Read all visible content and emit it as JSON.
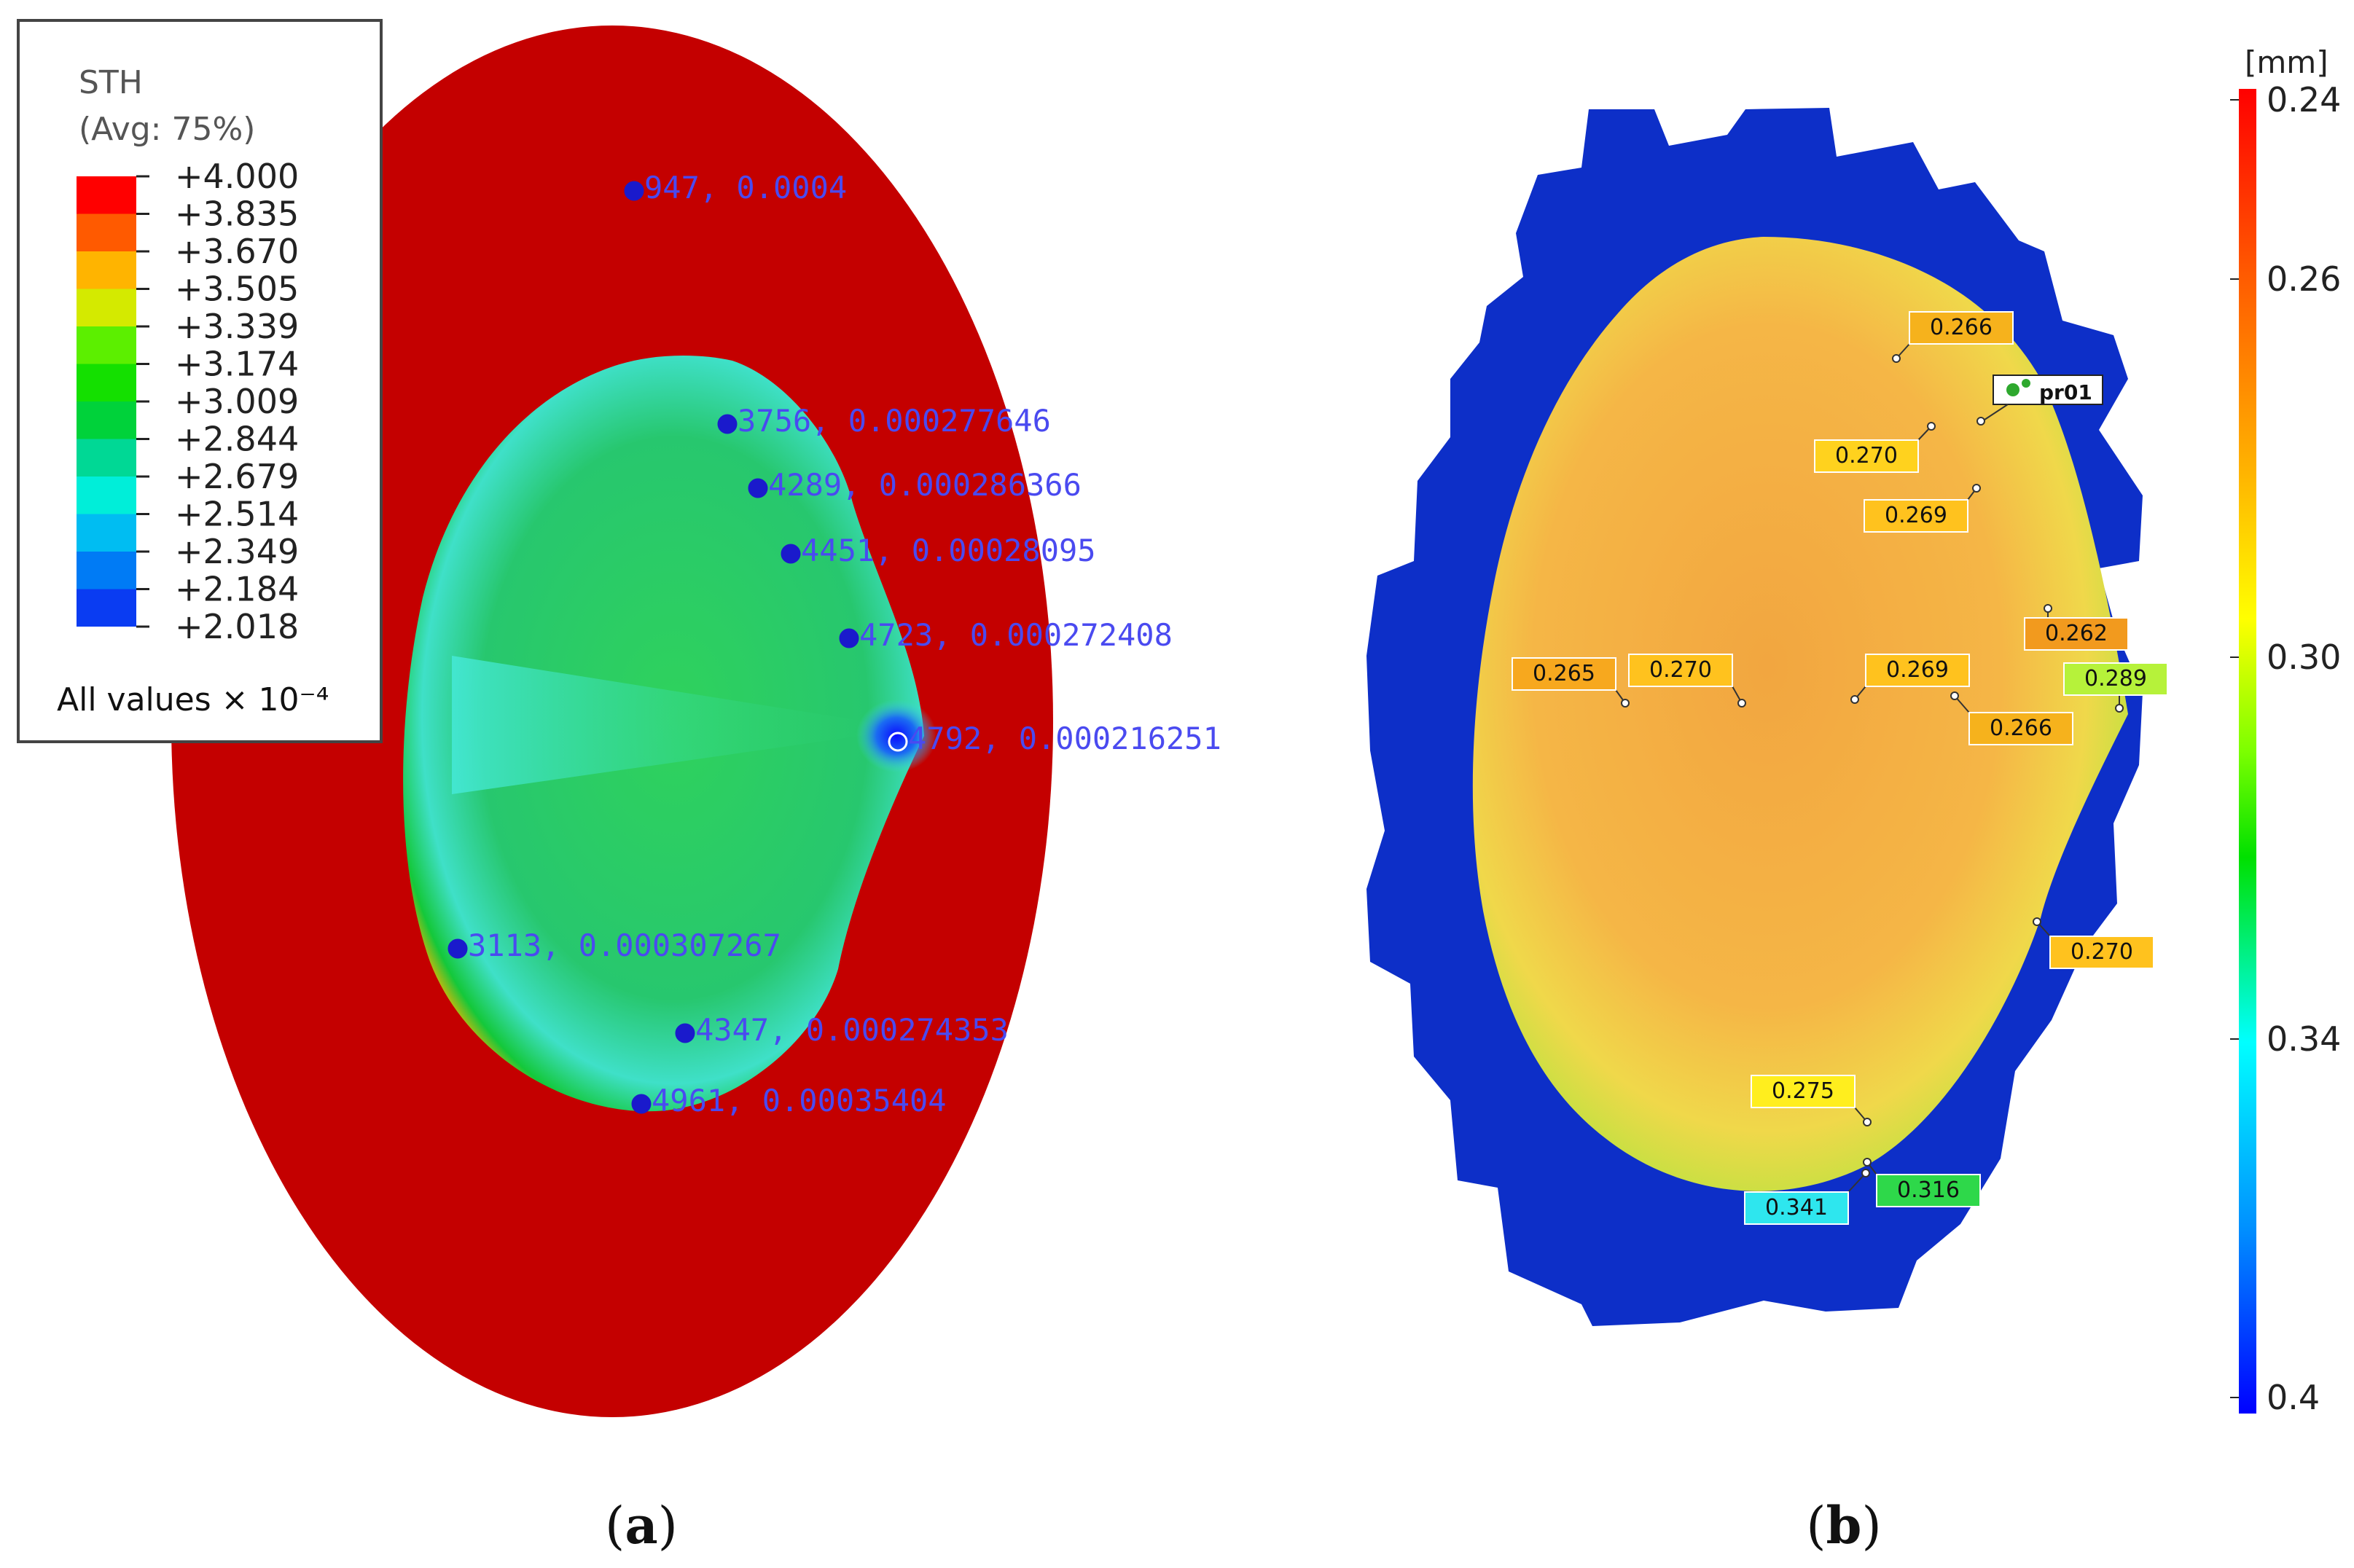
{
  "panel_a": {
    "caption_letter": "a",
    "legend": {
      "title": "STH",
      "subtitle": "(Avg: 75%)",
      "values": [
        "+4.000",
        "+3.835",
        "+3.670",
        "+3.505",
        "+3.339",
        "+3.174",
        "+3.009",
        "+2.844",
        "+2.679",
        "+2.514",
        "+2.349",
        "+2.184",
        "+2.018"
      ],
      "colors": [
        "#ff0000",
        "#ff5a00",
        "#ffb400",
        "#d4ea00",
        "#5cef00",
        "#14e000",
        "#00d23a",
        "#00d895",
        "#00eed9",
        "#00bdf2",
        "#007bf5",
        "#0a3cf2",
        "#0000ff"
      ],
      "footer": "All values × 10⁻⁴"
    },
    "node_labels": [
      {
        "text": "947, 0.0004"
      },
      {
        "text": "3756, 0.000277646"
      },
      {
        "text": "4289, 0.000286366"
      },
      {
        "text": "4451, 0.00028095"
      },
      {
        "text": "4723, 0.000272408"
      },
      {
        "text": "4792, 0.000216251"
      },
      {
        "text": "3113, 0.000307267"
      },
      {
        "text": "4347, 0.000274353"
      },
      {
        "text": "4961, 0.00035404"
      }
    ],
    "colors": {
      "outer": "#c00000",
      "dome": "#1ed062",
      "label_text": "#4a4af0"
    }
  },
  "panel_b": {
    "caption_letter": "b",
    "probe_label": "pr01",
    "colorbar": {
      "unit": "[mm]",
      "ticks": [
        "0.24",
        "0.26",
        "0.30",
        "0.34",
        "0.4"
      ]
    },
    "callouts": [
      {
        "text": "0.266",
        "color": "#f6b21c"
      },
      {
        "text": "0.270",
        "color": "#ffd21e"
      },
      {
        "text": "0.269",
        "color": "#ffc21e"
      },
      {
        "text": "0.262",
        "color": "#f29a1e"
      },
      {
        "text": "0.289",
        "color": "#b6f23a"
      },
      {
        "text": "0.265",
        "color": "#f7a81e"
      },
      {
        "text": "0.270",
        "color": "#ffc21e"
      },
      {
        "text": "0.269",
        "color": "#ffc21e"
      },
      {
        "text": "0.266",
        "color": "#f6b21c"
      },
      {
        "text": "0.270",
        "color": "#ffc21e"
      },
      {
        "text": "0.275",
        "color": "#ffee1e"
      },
      {
        "text": "0.316",
        "color": "#2ed84a"
      },
      {
        "text": "0.341",
        "color": "#2ee6ee"
      }
    ],
    "colors": {
      "background_ring": "#0d2fc8",
      "dome": "#f2b846"
    }
  }
}
